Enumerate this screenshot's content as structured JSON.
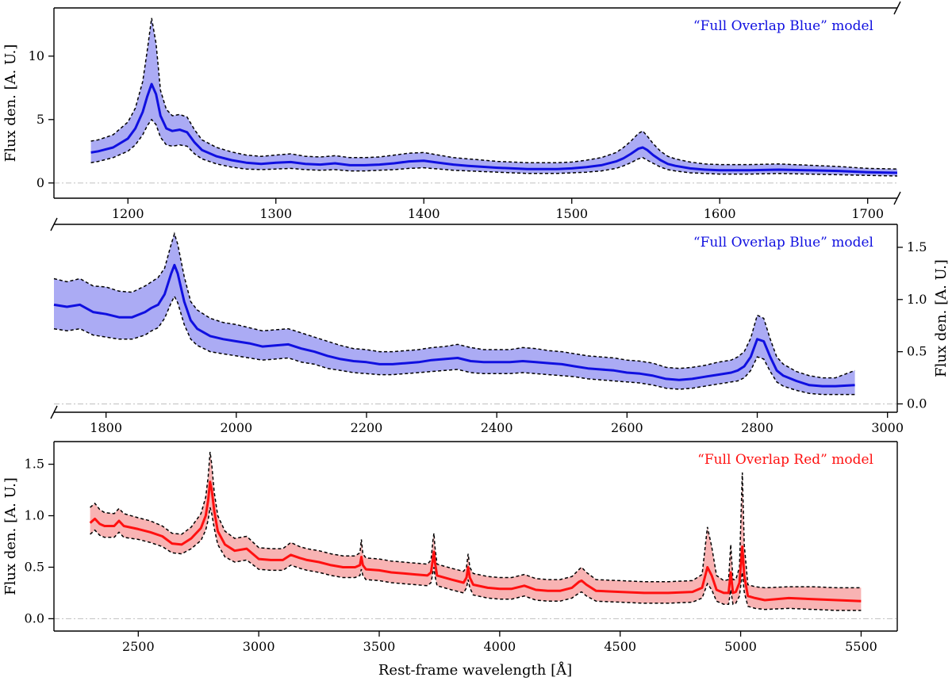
{
  "figure": {
    "xlabel": "Rest-frame wavelength [Å]"
  },
  "chart_data": [
    {
      "type": "line",
      "id": "panel-1",
      "title": "",
      "annotation": "“Full Overlap Blue” model",
      "color": "#1010e0",
      "band_color": "#8f8ff0",
      "xlabel": "",
      "ylabel": "Flux den. [A. U.]",
      "ylabel_side": "left",
      "xlim": [
        1150,
        1720
      ],
      "ylim": [
        -1.2,
        13.8
      ],
      "xticks": [
        1200,
        1300,
        1400,
        1500,
        1600,
        1700
      ],
      "yticks": [
        0,
        5,
        10
      ],
      "baseline": 0,
      "broken_right_axis": true,
      "x": [
        1175,
        1180,
        1190,
        1200,
        1205,
        1210,
        1213,
        1216,
        1219,
        1222,
        1226,
        1230,
        1235,
        1240,
        1245,
        1250,
        1260,
        1270,
        1280,
        1290,
        1300,
        1310,
        1320,
        1330,
        1340,
        1350,
        1360,
        1370,
        1380,
        1390,
        1400,
        1410,
        1420,
        1430,
        1450,
        1470,
        1490,
        1500,
        1510,
        1520,
        1530,
        1535,
        1540,
        1545,
        1548,
        1551,
        1555,
        1560,
        1565,
        1570,
        1580,
        1590,
        1600,
        1620,
        1640,
        1660,
        1680,
        1700,
        1720
      ],
      "y": [
        2.4,
        2.5,
        2.8,
        3.5,
        4.3,
        5.6,
        6.8,
        7.8,
        7.0,
        5.3,
        4.3,
        4.1,
        4.2,
        4.0,
        3.2,
        2.6,
        2.1,
        1.8,
        1.6,
        1.5,
        1.6,
        1.65,
        1.5,
        1.45,
        1.55,
        1.4,
        1.4,
        1.45,
        1.55,
        1.7,
        1.75,
        1.6,
        1.45,
        1.35,
        1.2,
        1.1,
        1.1,
        1.15,
        1.25,
        1.4,
        1.7,
        1.95,
        2.3,
        2.7,
        2.8,
        2.6,
        2.2,
        1.8,
        1.5,
        1.35,
        1.15,
        1.05,
        1.0,
        1.0,
        1.05,
        1.0,
        0.95,
        0.85,
        0.8
      ],
      "upper": [
        3.3,
        3.4,
        3.8,
        4.8,
        5.9,
        8.0,
        10.4,
        13.0,
        11.0,
        7.3,
        5.8,
        5.3,
        5.4,
        5.2,
        4.2,
        3.4,
        2.8,
        2.45,
        2.2,
        2.1,
        2.2,
        2.3,
        2.1,
        2.05,
        2.15,
        2.0,
        2.0,
        2.05,
        2.2,
        2.35,
        2.4,
        2.2,
        2.0,
        1.9,
        1.7,
        1.6,
        1.6,
        1.65,
        1.8,
        2.0,
        2.4,
        2.8,
        3.3,
        3.9,
        4.1,
        3.7,
        3.1,
        2.5,
        2.1,
        1.9,
        1.65,
        1.5,
        1.45,
        1.45,
        1.5,
        1.4,
        1.3,
        1.15,
        1.1
      ],
      "lower": [
        1.6,
        1.7,
        2.0,
        2.5,
        3.0,
        3.8,
        4.5,
        5.0,
        4.6,
        3.6,
        3.0,
        2.9,
        3.0,
        2.9,
        2.3,
        1.9,
        1.5,
        1.25,
        1.1,
        1.05,
        1.1,
        1.15,
        1.05,
        1.0,
        1.05,
        0.95,
        0.95,
        1.0,
        1.05,
        1.15,
        1.2,
        1.1,
        1.0,
        0.95,
        0.85,
        0.75,
        0.75,
        0.8,
        0.85,
        0.95,
        1.15,
        1.35,
        1.6,
        1.9,
        2.0,
        1.8,
        1.55,
        1.25,
        1.05,
        0.95,
        0.8,
        0.75,
        0.7,
        0.7,
        0.75,
        0.7,
        0.65,
        0.6,
        0.55
      ]
    },
    {
      "type": "line",
      "id": "panel-2",
      "title": "",
      "annotation": "“Full Overlap Blue” model",
      "color": "#1010e0",
      "band_color": "#8f8ff0",
      "xlabel": "",
      "ylabel": "Flux den. [A. U.]",
      "ylabel_side": "right",
      "xlim": [
        1720,
        3015
      ],
      "ylim": [
        -0.08,
        1.72
      ],
      "xticks": [
        1800,
        2000,
        2200,
        2400,
        2600,
        2800,
        3000
      ],
      "yticks": [
        0.0,
        0.5,
        1.0,
        1.5
      ],
      "baseline": 0,
      "broken_left_axis": true,
      "x": [
        1720,
        1740,
        1760,
        1780,
        1800,
        1820,
        1840,
        1860,
        1870,
        1880,
        1890,
        1900,
        1905,
        1910,
        1920,
        1930,
        1940,
        1960,
        1980,
        2000,
        2020,
        2040,
        2060,
        2080,
        2100,
        2120,
        2140,
        2160,
        2180,
        2200,
        2220,
        2240,
        2260,
        2280,
        2300,
        2320,
        2340,
        2360,
        2380,
        2400,
        2420,
        2440,
        2460,
        2480,
        2500,
        2520,
        2540,
        2560,
        2580,
        2600,
        2620,
        2640,
        2660,
        2680,
        2700,
        2720,
        2740,
        2760,
        2770,
        2780,
        2790,
        2800,
        2810,
        2820,
        2830,
        2840,
        2860,
        2880,
        2900,
        2920,
        2950
      ],
      "y": [
        0.95,
        0.93,
        0.95,
        0.88,
        0.86,
        0.83,
        0.83,
        0.88,
        0.92,
        0.95,
        1.05,
        1.25,
        1.33,
        1.25,
        0.98,
        0.8,
        0.72,
        0.65,
        0.62,
        0.6,
        0.58,
        0.55,
        0.56,
        0.57,
        0.53,
        0.5,
        0.46,
        0.43,
        0.41,
        0.4,
        0.38,
        0.38,
        0.39,
        0.4,
        0.42,
        0.43,
        0.44,
        0.41,
        0.4,
        0.4,
        0.4,
        0.41,
        0.4,
        0.39,
        0.38,
        0.36,
        0.34,
        0.33,
        0.32,
        0.3,
        0.29,
        0.27,
        0.24,
        0.23,
        0.24,
        0.26,
        0.28,
        0.3,
        0.32,
        0.36,
        0.45,
        0.62,
        0.6,
        0.45,
        0.32,
        0.27,
        0.22,
        0.18,
        0.17,
        0.17,
        0.18
      ],
      "upper": [
        1.2,
        1.17,
        1.2,
        1.13,
        1.12,
        1.08,
        1.07,
        1.13,
        1.17,
        1.21,
        1.3,
        1.53,
        1.63,
        1.53,
        1.22,
        0.98,
        0.9,
        0.82,
        0.78,
        0.76,
        0.73,
        0.7,
        0.71,
        0.72,
        0.68,
        0.64,
        0.6,
        0.56,
        0.53,
        0.52,
        0.5,
        0.5,
        0.51,
        0.52,
        0.54,
        0.55,
        0.57,
        0.54,
        0.52,
        0.52,
        0.52,
        0.54,
        0.53,
        0.51,
        0.5,
        0.48,
        0.46,
        0.45,
        0.44,
        0.42,
        0.41,
        0.39,
        0.35,
        0.34,
        0.35,
        0.37,
        0.4,
        0.42,
        0.45,
        0.5,
        0.63,
        0.85,
        0.82,
        0.62,
        0.45,
        0.38,
        0.31,
        0.27,
        0.25,
        0.25,
        0.32
      ],
      "lower": [
        0.72,
        0.7,
        0.72,
        0.66,
        0.64,
        0.62,
        0.62,
        0.66,
        0.7,
        0.73,
        0.82,
        0.97,
        1.03,
        0.97,
        0.76,
        0.62,
        0.56,
        0.5,
        0.48,
        0.46,
        0.44,
        0.42,
        0.43,
        0.44,
        0.4,
        0.38,
        0.34,
        0.32,
        0.3,
        0.29,
        0.28,
        0.28,
        0.29,
        0.3,
        0.31,
        0.32,
        0.33,
        0.3,
        0.29,
        0.29,
        0.29,
        0.3,
        0.29,
        0.28,
        0.27,
        0.26,
        0.24,
        0.23,
        0.22,
        0.21,
        0.2,
        0.18,
        0.15,
        0.14,
        0.15,
        0.17,
        0.19,
        0.21,
        0.22,
        0.25,
        0.32,
        0.45,
        0.43,
        0.31,
        0.21,
        0.17,
        0.13,
        0.1,
        0.09,
        0.09,
        0.09
      ]
    },
    {
      "type": "line",
      "id": "panel-3",
      "title": "",
      "annotation": "“Full Overlap Red” model",
      "color": "#ff1010",
      "band_color": "#f59a9a",
      "xlabel": "Rest-frame wavelength [Å]",
      "ylabel": "Flux den. [A. U.]",
      "ylabel_side": "left",
      "xlim": [
        2150,
        5650
      ],
      "ylim": [
        -0.12,
        1.72
      ],
      "xticks": [
        2500,
        3000,
        3500,
        4000,
        4500,
        5000,
        5500
      ],
      "yticks": [
        0.0,
        0.5,
        1.0,
        1.5
      ],
      "baseline": 0,
      "x": [
        2300,
        2320,
        2340,
        2360,
        2400,
        2420,
        2440,
        2500,
        2550,
        2600,
        2640,
        2680,
        2720,
        2760,
        2780,
        2790,
        2798,
        2805,
        2815,
        2830,
        2860,
        2900,
        2950,
        3000,
        3050,
        3100,
        3133,
        3170,
        3200,
        3250,
        3300,
        3350,
        3380,
        3400,
        3420,
        3426,
        3432,
        3445,
        3500,
        3550,
        3600,
        3650,
        3700,
        3715,
        3723,
        3727,
        3731,
        3740,
        3800,
        3850,
        3862,
        3869,
        3876,
        3890,
        3950,
        4000,
        4050,
        4102,
        4150,
        4200,
        4250,
        4300,
        4330,
        4340,
        4360,
        4400,
        4500,
        4600,
        4700,
        4800,
        4840,
        4862,
        4880,
        4900,
        4930,
        4950,
        4959,
        4968,
        4980,
        4995,
        5007,
        5015,
        5030,
        5060,
        5100,
        5200,
        5300,
        5400,
        5500
      ],
      "y": [
        0.93,
        0.97,
        0.92,
        0.9,
        0.9,
        0.95,
        0.9,
        0.87,
        0.84,
        0.8,
        0.73,
        0.72,
        0.78,
        0.88,
        1.0,
        1.15,
        1.33,
        1.25,
        1.05,
        0.85,
        0.72,
        0.66,
        0.68,
        0.58,
        0.57,
        0.57,
        0.62,
        0.59,
        0.57,
        0.55,
        0.52,
        0.5,
        0.5,
        0.5,
        0.52,
        0.6,
        0.52,
        0.48,
        0.47,
        0.45,
        0.44,
        0.43,
        0.42,
        0.45,
        0.58,
        0.65,
        0.55,
        0.42,
        0.38,
        0.35,
        0.4,
        0.5,
        0.4,
        0.33,
        0.3,
        0.29,
        0.29,
        0.32,
        0.28,
        0.27,
        0.27,
        0.3,
        0.36,
        0.37,
        0.33,
        0.27,
        0.26,
        0.25,
        0.25,
        0.26,
        0.3,
        0.5,
        0.42,
        0.28,
        0.25,
        0.25,
        0.45,
        0.25,
        0.26,
        0.35,
        0.7,
        0.42,
        0.22,
        0.2,
        0.18,
        0.2,
        0.19,
        0.18,
        0.17
      ],
      "upper": [
        1.08,
        1.12,
        1.06,
        1.03,
        1.02,
        1.07,
        1.02,
        0.98,
        0.95,
        0.9,
        0.83,
        0.82,
        0.89,
        1.02,
        1.18,
        1.38,
        1.62,
        1.5,
        1.23,
        1.0,
        0.85,
        0.78,
        0.8,
        0.69,
        0.68,
        0.68,
        0.74,
        0.7,
        0.68,
        0.66,
        0.63,
        0.61,
        0.61,
        0.61,
        0.64,
        0.77,
        0.63,
        0.59,
        0.58,
        0.56,
        0.55,
        0.54,
        0.53,
        0.57,
        0.76,
        0.83,
        0.7,
        0.53,
        0.49,
        0.46,
        0.5,
        0.63,
        0.5,
        0.44,
        0.41,
        0.4,
        0.4,
        0.43,
        0.39,
        0.38,
        0.38,
        0.41,
        0.48,
        0.5,
        0.45,
        0.38,
        0.37,
        0.36,
        0.36,
        0.37,
        0.43,
        0.89,
        0.7,
        0.42,
        0.37,
        0.38,
        0.72,
        0.38,
        0.38,
        0.5,
        1.42,
        0.72,
        0.33,
        0.31,
        0.3,
        0.31,
        0.31,
        0.3,
        0.3
      ],
      "lower": [
        0.82,
        0.86,
        0.81,
        0.79,
        0.79,
        0.84,
        0.79,
        0.77,
        0.74,
        0.7,
        0.64,
        0.63,
        0.68,
        0.76,
        0.86,
        0.96,
        1.08,
        1.02,
        0.88,
        0.72,
        0.6,
        0.55,
        0.57,
        0.48,
        0.47,
        0.47,
        0.52,
        0.49,
        0.47,
        0.45,
        0.42,
        0.4,
        0.4,
        0.4,
        0.42,
        0.48,
        0.42,
        0.38,
        0.37,
        0.35,
        0.34,
        0.33,
        0.32,
        0.35,
        0.45,
        0.5,
        0.42,
        0.32,
        0.28,
        0.25,
        0.3,
        0.38,
        0.3,
        0.23,
        0.2,
        0.19,
        0.19,
        0.22,
        0.18,
        0.17,
        0.17,
        0.2,
        0.25,
        0.26,
        0.22,
        0.17,
        0.16,
        0.15,
        0.15,
        0.16,
        0.2,
        0.34,
        0.28,
        0.17,
        0.14,
        0.14,
        0.28,
        0.14,
        0.15,
        0.22,
        0.45,
        0.26,
        0.12,
        0.1,
        0.09,
        0.1,
        0.09,
        0.08,
        0.08
      ]
    }
  ]
}
